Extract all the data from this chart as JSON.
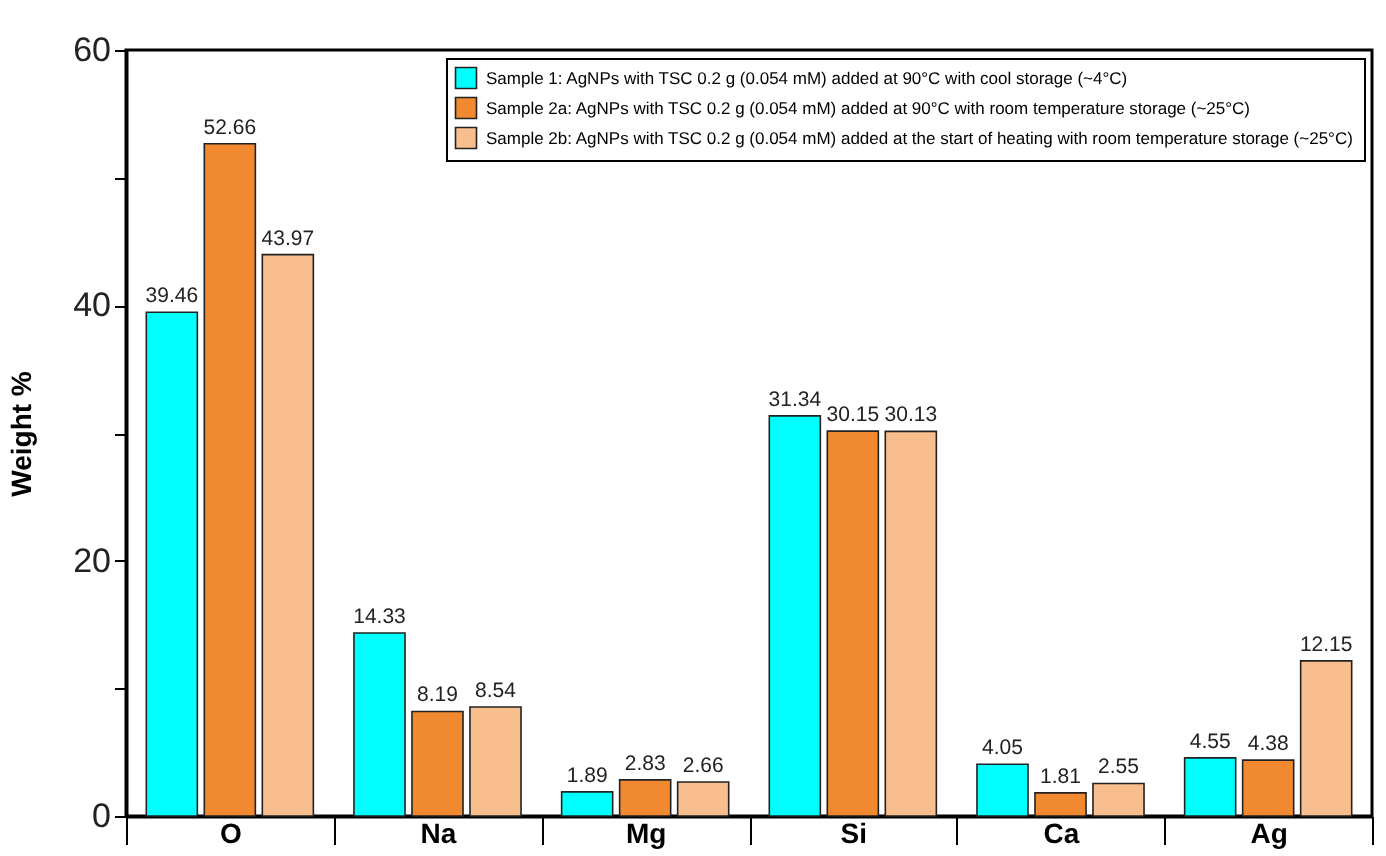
{
  "chart_data": {
    "type": "bar",
    "ylabel": "Weight %",
    "categories": [
      "O",
      "Na",
      "Mg",
      "Si",
      "Ca",
      "Ag"
    ],
    "series": [
      {
        "name": "Sample 1: AgNPs with TSC 0.2 g (0.054 mM) added at 90°C with cool storage (~4°C)",
        "color": "#00ffff",
        "values": [
          39.46,
          14.33,
          1.89,
          31.34,
          4.05,
          4.55
        ]
      },
      {
        "name": "Sample 2a: AgNPs with TSC 0.2 g (0.054 mM) added at 90°C with room temperature storage (~25°C)",
        "color": "#f0892f",
        "values": [
          52.66,
          8.19,
          2.83,
          30.15,
          1.81,
          4.38
        ]
      },
      {
        "name": "Sample 2b: AgNPs with TSC 0.2 g (0.054 mM) added at the start of heating with room temperature storage (~25°C)",
        "color": "#f8be8e",
        "values": [
          43.97,
          8.54,
          2.66,
          30.13,
          2.55,
          12.15
        ]
      }
    ],
    "ylim": [
      0,
      60
    ],
    "yticks": [
      0,
      {
        "value": 10,
        "label": null
      },
      20,
      {
        "value": 30,
        "label": null
      },
      40,
      {
        "value": 50,
        "label": null
      },
      60
    ],
    "data_labels": true,
    "legend": "top right",
    "grid": false
  }
}
